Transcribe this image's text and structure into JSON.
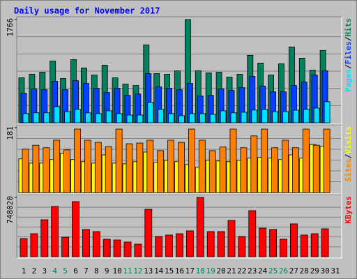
{
  "title": "Daily usage for November 2017",
  "legend_separator": "/",
  "chart_data": [
    {
      "type": "bar",
      "ylim": [
        0,
        1766
      ],
      "yticks": [
        1766
      ],
      "series": [
        {
          "name": "Hits",
          "color": "#00805c",
          "values": [
            770,
            830,
            865,
            1057,
            757,
            1081,
            937,
            817,
            985,
            769,
            661,
            637,
            1333,
            841,
            829,
            889,
            1766,
            889,
            853,
            865,
            781,
            829,
            1153,
            1021,
            817,
            1009,
            1297,
            1105,
            901,
            1237,
            null
          ]
        },
        {
          "name": "Files",
          "color": "#0040ff",
          "values": [
            505,
            577,
            565,
            709,
            565,
            721,
            673,
            589,
            517,
            589,
            469,
            493,
            841,
            613,
            589,
            565,
            673,
            457,
            469,
            577,
            553,
            601,
            793,
            625,
            529,
            529,
            637,
            697,
            817,
            889,
            null
          ]
        },
        {
          "name": "Pages",
          "color": "#00e0ff",
          "values": [
            156,
            170,
            170,
            276,
            192,
            228,
            170,
            156,
            204,
            156,
            132,
            132,
            348,
            228,
            156,
            120,
            156,
            156,
            144,
            204,
            170,
            180,
            216,
            228,
            192,
            192,
            216,
            228,
            252,
            360,
            null
          ]
        }
      ]
    },
    {
      "type": "bar",
      "ylim": [
        0,
        181
      ],
      "yticks": [
        181
      ],
      "series": [
        {
          "name": "Visits",
          "color": "#ffff00",
          "values": [
            94,
            82,
            82,
            92,
            109,
            92,
            86,
            82,
            105,
            82,
            80,
            86,
            113,
            84,
            90,
            86,
            78,
            70,
            90,
            88,
            86,
            90,
            96,
            98,
            96,
            92,
            105,
            96,
            134,
            129,
            null
          ]
        },
        {
          "name": "Sites",
          "color": "#ff8000",
          "values": [
            121,
            132,
            125,
            146,
            119,
            177,
            146,
            140,
            128,
            177,
            136,
            138,
            146,
            117,
            146,
            140,
            177,
            146,
            117,
            127,
            177,
            125,
            158,
            177,
            125,
            146,
            125,
            177,
            132,
            177,
            null
          ]
        }
      ]
    },
    {
      "type": "bar",
      "ylim": [
        0,
        748020
      ],
      "yticks": [
        748020
      ],
      "categories": [
        "1",
        "2",
        "3",
        "4",
        "5",
        "6",
        "7",
        "8",
        "9",
        "10",
        "11",
        "12",
        "13",
        "14",
        "15",
        "16",
        "17",
        "18",
        "19",
        "20",
        "21",
        "22",
        "23",
        "24",
        "25",
        "26",
        "27",
        "28",
        "29",
        "30",
        "31"
      ],
      "category_label_colors": [
        "#000000",
        "#000000",
        "#000000",
        "#00805c",
        "#00805c",
        "#000000",
        "#000000",
        "#000000",
        "#000000",
        "#000000",
        "#00805c",
        "#00805c",
        "#000000",
        "#000000",
        "#000000",
        "#000000",
        "#000000",
        "#00805c",
        "#00805c",
        "#000000",
        "#000000",
        "#000000",
        "#000000",
        "#000000",
        "#00805c",
        "#00805c",
        "#000000",
        "#000000",
        "#000000",
        "#000000",
        "#000000"
      ],
      "series": [
        {
          "name": "KBytes",
          "color": "#ff0000",
          "values": [
            229000,
            290000,
            466000,
            634000,
            246000,
            695000,
            343000,
            317000,
            220000,
            211000,
            185000,
            158000,
            598000,
            255000,
            273000,
            290000,
            326000,
            748020,
            317000,
            317000,
            458000,
            255000,
            581000,
            361000,
            343000,
            220000,
            414000,
            273000,
            290000,
            352000,
            null
          ]
        }
      ]
    }
  ]
}
